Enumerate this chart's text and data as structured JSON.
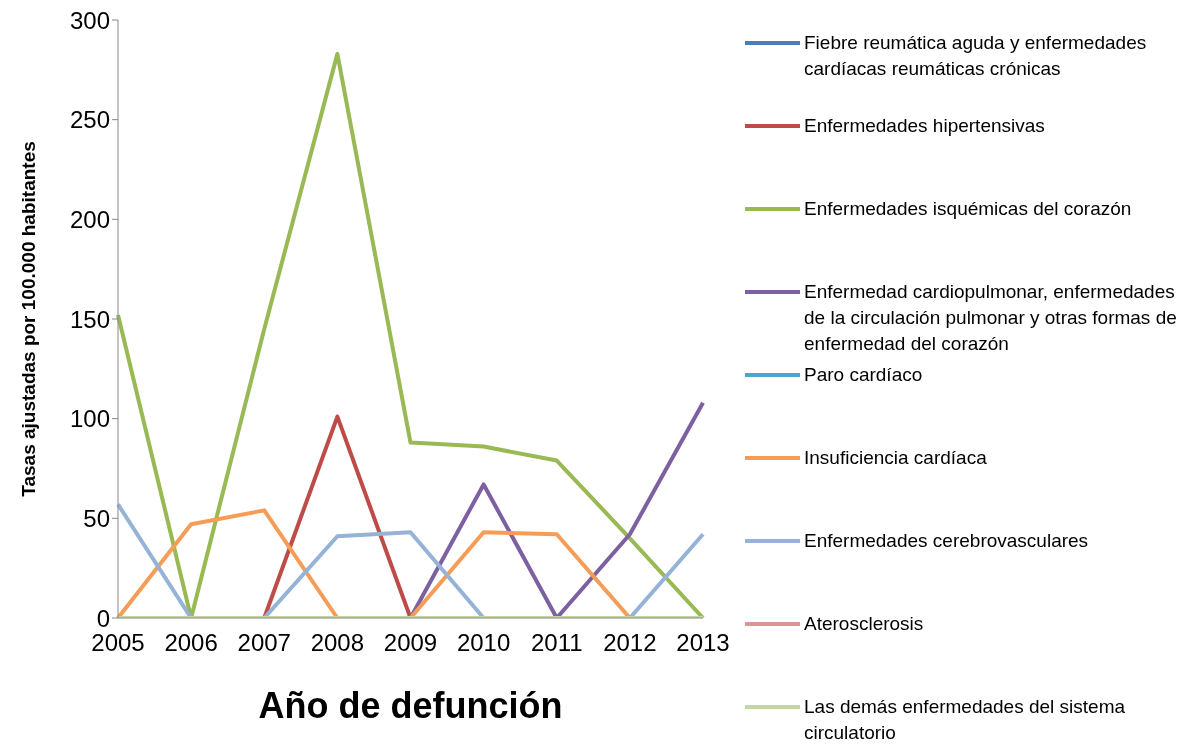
{
  "chart_data": {
    "type": "line",
    "xlabel": "Año de defunción",
    "ylabel": "Tasas ajustadas por 100.000 habitantes",
    "categories": [
      "2005",
      "2006",
      "2007",
      "2008",
      "2009",
      "2010",
      "2011",
      "2012",
      "2013"
    ],
    "ylim": [
      0,
      300
    ],
    "yticks": [
      0,
      50,
      100,
      150,
      200,
      250,
      300
    ],
    "grid": false,
    "legend": "right",
    "marker": "none",
    "series": [
      {
        "name": "Fiebre reumática aguda y enfermedades cardíacas reumáticas crónicas",
        "color": "#4a7ebb",
        "values": [
          null,
          null,
          null,
          null,
          null,
          null,
          null,
          null,
          null
        ]
      },
      {
        "name": "Enfermedades hipertensivas",
        "color": "#be4b48",
        "values": [
          null,
          null,
          0,
          101,
          0,
          null,
          null,
          null,
          null
        ]
      },
      {
        "name": "Enfermedades isquémicas del corazón",
        "color": "#98b954",
        "values": [
          152,
          0,
          145,
          283,
          88,
          86,
          79,
          40,
          0
        ]
      },
      {
        "name": "Enfermedad cardiopulmonar, enfermedades de la circulación pulmonar y otras formas de enfermedad del corazón",
        "color": "#7d60a0",
        "values": [
          0,
          0,
          0,
          0,
          0,
          67,
          0,
          42,
          108
        ]
      },
      {
        "name": "Paro cardíaco",
        "color": "#46aac5",
        "values": [
          null,
          null,
          null,
          null,
          null,
          null,
          null,
          null,
          null
        ]
      },
      {
        "name": "Insuficiencia cardíaca",
        "color": "#f59d56",
        "values": [
          0,
          47,
          54,
          0,
          0,
          43,
          42,
          0,
          null
        ]
      },
      {
        "name": "Enfermedades cerebrovasculares",
        "color": "#95b3d7",
        "values": [
          57,
          0,
          0,
          41,
          43,
          0,
          0,
          0,
          42
        ]
      },
      {
        "name": "Aterosclerosis",
        "color": "#d99694",
        "values": [
          null,
          null,
          null,
          null,
          null,
          null,
          null,
          null,
          null
        ]
      },
      {
        "name": "Las demás enfermedades del sistema circulatorio",
        "color": "#c3d69b",
        "values": [
          0,
          0,
          0,
          0,
          0,
          0,
          0,
          0,
          0
        ]
      }
    ]
  }
}
